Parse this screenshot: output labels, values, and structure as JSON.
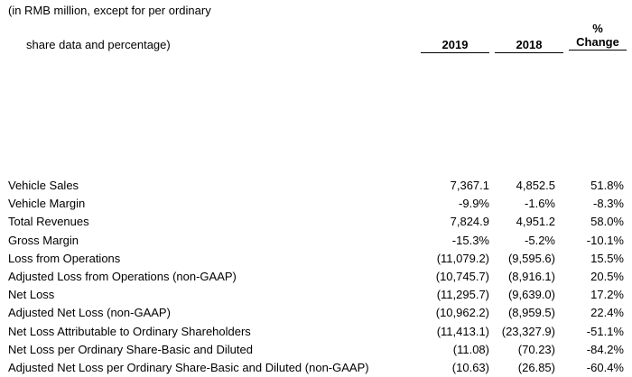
{
  "header": {
    "line1": "(in RMB million, except for per ordinary",
    "line2": "share data and percentage)",
    "col_2019": "2019",
    "col_2018": "2018",
    "col_change_line1": "%",
    "col_change_line2": "Change"
  },
  "rows": [
    {
      "label": "Vehicle Sales",
      "v2019": "7,367.1",
      "v2018": "4,852.5",
      "change": "51.8%"
    },
    {
      "label": "Vehicle Margin",
      "v2019": "-9.9%",
      "v2018": "-1.6%",
      "change": "-8.3%"
    },
    {
      "label": "Total Revenues",
      "v2019": "7,824.9",
      "v2018": "4,951.2",
      "change": "58.0%"
    },
    {
      "label": "Gross Margin",
      "v2019": "-15.3%",
      "v2018": "-5.2%",
      "change": "-10.1%"
    },
    {
      "label": "Loss from Operations",
      "v2019": "(11,079.2)",
      "v2018": "(9,595.6)",
      "change": "15.5%"
    },
    {
      "label": "Adjusted Loss from Operations (non-GAAP)",
      "v2019": "(10,745.7)",
      "v2018": "(8,916.1)",
      "change": "20.5%"
    },
    {
      "label": "Net Loss",
      "v2019": "(11,295.7)",
      "v2018": "(9,639.0)",
      "change": "17.2%"
    },
    {
      "label": "Adjusted Net Loss (non-GAAP)",
      "v2019": "(10,962.2)",
      "v2018": "(8,959.5)",
      "change": "22.4%"
    },
    {
      "label": "Net Loss Attributable to Ordinary Shareholders",
      "v2019": "(11,413.1)",
      "v2018": "(23,327.9)",
      "change": "-51.1%"
    },
    {
      "label": "Net Loss per Ordinary Share-Basic and Diluted",
      "v2019": "(11.08)",
      "v2018": "(70.23)",
      "change": "-84.2%"
    },
    {
      "label": "Adjusted Net Loss per Ordinary Share-Basic and Diluted (non-GAAP)",
      "v2019": "(10.63)",
      "v2018": "(26.85)",
      "change": "-60.4%"
    }
  ]
}
